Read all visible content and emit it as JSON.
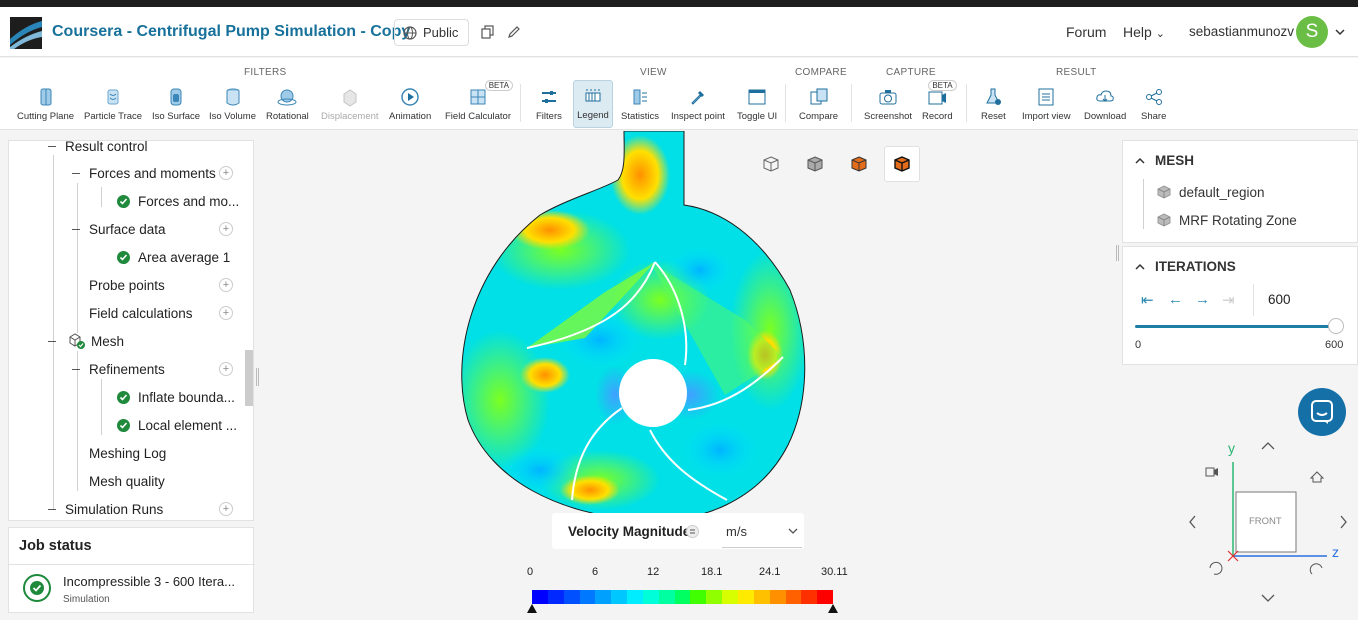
{
  "header": {
    "title": "Coursera - Centrifugal Pump Simulation - Copy",
    "visibility": "Public",
    "forum": "Forum",
    "help": "Help",
    "username": "sebastianmunozv",
    "avatar_letter": "S",
    "avatar_color": "#6bbe45"
  },
  "toolbar": {
    "groups": {
      "filters": "FILTERS",
      "view": "VIEW",
      "compare": "COMPARE",
      "capture": "CAPTURE",
      "result": "RESULT"
    },
    "tools": {
      "cutting_plane": "Cutting Plane",
      "particle_trace": "Particle Trace",
      "iso_surface": "Iso Surface",
      "iso_volume": "Iso Volume",
      "rotational": "Rotational",
      "displacement": "Displacement",
      "animation": "Animation",
      "field_calculator": "Field Calculator",
      "filters": "Filters",
      "legend": "Legend",
      "statistics": "Statistics",
      "inspect_point": "Inspect point",
      "toggle_ui": "Toggle UI",
      "compare": "Compare",
      "screenshot": "Screenshot",
      "record": "Record",
      "reset": "Reset",
      "import_view": "Import view",
      "download": "Download",
      "share": "Share"
    },
    "beta_badge": "BETA",
    "accent_color": "#17719a"
  },
  "tree": {
    "items": [
      "Result control",
      "Forces and moments",
      "Forces and mo...",
      "Surface data",
      "Area average 1",
      "Probe points",
      "Field calculations",
      "Mesh",
      "Refinements",
      "Inflate bounda...",
      "Local element ...",
      "Meshing Log",
      "Mesh quality",
      "Simulation Runs"
    ]
  },
  "job_status": {
    "title": "Job status",
    "job_name": "Incompressible 3 - 600 Itera...",
    "job_type": "Simulation",
    "status_color": "#1f8a3c"
  },
  "legend": {
    "field": "Velocity Magnitude",
    "unit": "m/s",
    "ticks": [
      "0",
      "6",
      "12",
      "18.1",
      "24.1",
      "30.11"
    ],
    "colors": [
      "#0000ff",
      "#0028ff",
      "#0050ff",
      "#0078ff",
      "#00a0ff",
      "#00c8ff",
      "#00ecff",
      "#00ffd8",
      "#00ffa0",
      "#00ff60",
      "#40ff00",
      "#90ff00",
      "#d8ff00",
      "#ffea00",
      "#ffc000",
      "#ff9000",
      "#ff6000",
      "#ff3000",
      "#ff0000"
    ]
  },
  "mesh_panel": {
    "title": "MESH",
    "items": [
      "default_region",
      "MRF Rotating Zone"
    ]
  },
  "iterations": {
    "title": "ITERATIONS",
    "value": "600",
    "min": "0",
    "max": "600",
    "fraction": 1.0
  },
  "orientation": {
    "face": "FRONT",
    "y_axis": "y",
    "z_axis": "z"
  }
}
